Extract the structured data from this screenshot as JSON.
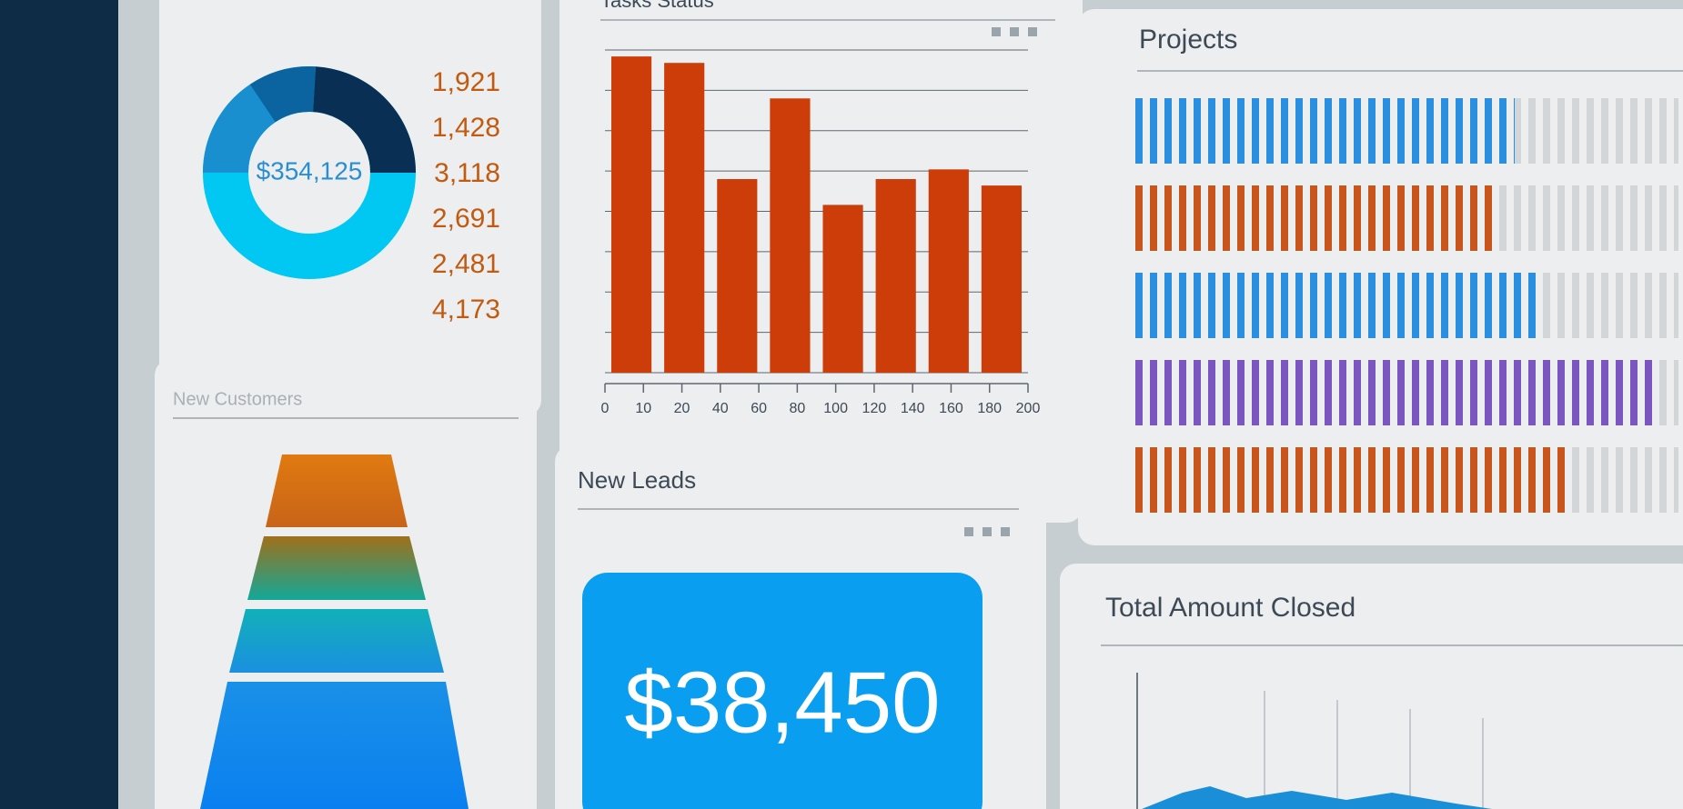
{
  "panels": {
    "revenue": {
      "center_label": "$354,125",
      "items": [
        "1,921",
        "1,428",
        "3,118",
        "2,691",
        "2,481",
        "4,173"
      ]
    },
    "new_customers": {
      "title": "New Customers"
    },
    "new_leads": {
      "title": "New Leads",
      "amount": "$38,450"
    },
    "total_amount_closed": {
      "title": "Total Amount Closed"
    }
  },
  "chart_data": [
    {
      "type": "bar",
      "title": "Tasks Status",
      "values": [
        98,
        96,
        60,
        85,
        52,
        60,
        63,
        58
      ],
      "color": "#cc3d0a",
      "ylim": [
        0,
        100
      ],
      "xticks": [
        0,
        10,
        20,
        40,
        60,
        80,
        100,
        120,
        140,
        160,
        180,
        200
      ]
    },
    {
      "type": "progress",
      "title": "Projects",
      "values": [
        70,
        66,
        75,
        96,
        80
      ],
      "colors": [
        "#2a8fe0",
        "#c8561a",
        "#2a8fe0",
        "#7b55c0",
        "#c8561a"
      ],
      "xlim": [
        0,
        100
      ]
    }
  ]
}
